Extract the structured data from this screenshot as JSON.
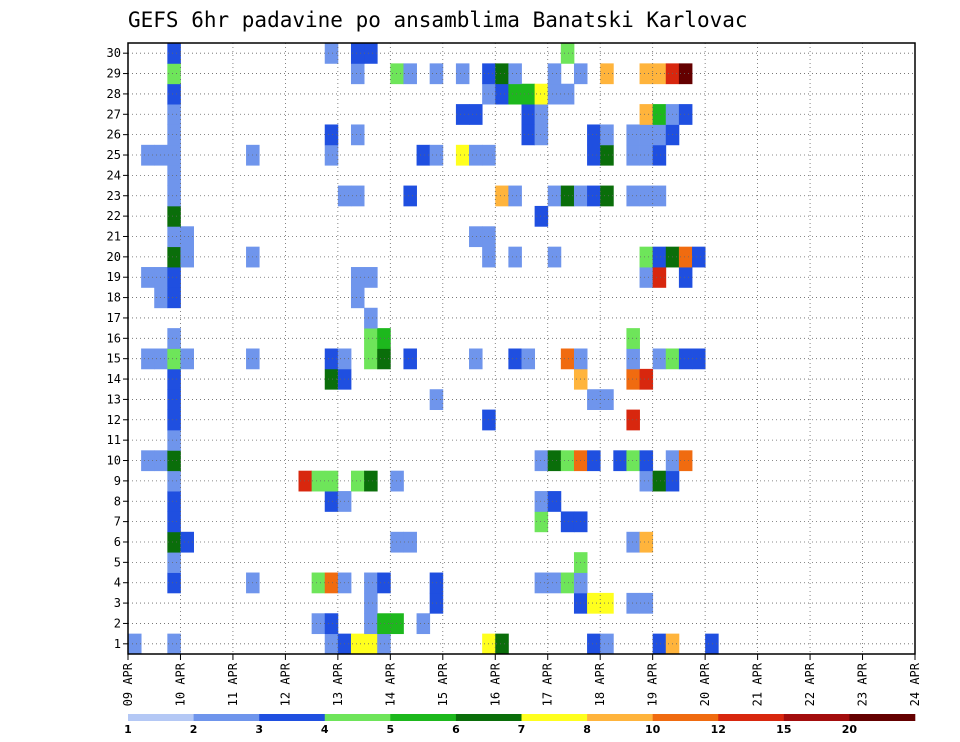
{
  "chart_data": {
    "type": "heatmap",
    "title": "GEFS 6hr padavine po ansamblima Banatski Karlovac",
    "x_tick_labels": [
      "09 APR",
      "10 APR",
      "11 APR",
      "12 APR",
      "13 APR",
      "14 APR",
      "15 APR",
      "16 APR",
      "17 APR",
      "18 APR",
      "19 APR",
      "20 APR",
      "21 APR",
      "22 APR",
      "23 APR",
      "24 APR"
    ],
    "y_tick_labels": [
      "1",
      "2",
      "3",
      "4",
      "5",
      "6",
      "7",
      "8",
      "9",
      "10",
      "11",
      "12",
      "13",
      "14",
      "15",
      "16",
      "17",
      "18",
      "19",
      "20",
      "21",
      "22",
      "23",
      "24",
      "25",
      "26",
      "27",
      "28",
      "29",
      "30"
    ],
    "xlim": [
      0,
      60
    ],
    "ylim": [
      0.5,
      30.5
    ],
    "grid": true,
    "colorbar": {
      "labels": [
        "1",
        "2",
        "3",
        "4",
        "5",
        "6",
        "7",
        "8",
        "10",
        "12",
        "15",
        "20"
      ],
      "colors": [
        "#b4c8f5",
        "#6f95ec",
        "#1f4fe0",
        "#6ee55a",
        "#1db81d",
        "#0a6e0a",
        "#ffff1e",
        "#ffb43c",
        "#f06b10",
        "#d8270e",
        "#a30d0d",
        "#640000"
      ]
    },
    "cells": [
      [
        0,
        1,
        1
      ],
      [
        3,
        1,
        1
      ],
      [
        15,
        1,
        1
      ],
      [
        16,
        1,
        2
      ],
      [
        17,
        1,
        6
      ],
      [
        18,
        1,
        6
      ],
      [
        19,
        1,
        1
      ],
      [
        27,
        1,
        6
      ],
      [
        28,
        1,
        5
      ],
      [
        35,
        1,
        2
      ],
      [
        36,
        1,
        1
      ],
      [
        40,
        1,
        2
      ],
      [
        41,
        1,
        7
      ],
      [
        44,
        1,
        2
      ],
      [
        14,
        2,
        1
      ],
      [
        15,
        2,
        2
      ],
      [
        18,
        2,
        1
      ],
      [
        19,
        2,
        4
      ],
      [
        20,
        2,
        4
      ],
      [
        22,
        2,
        1
      ],
      [
        18,
        3,
        1
      ],
      [
        23,
        3,
        2
      ],
      [
        34,
        3,
        2
      ],
      [
        35,
        3,
        6
      ],
      [
        36,
        3,
        6
      ],
      [
        38,
        3,
        1
      ],
      [
        39,
        3,
        1
      ],
      [
        3,
        4,
        2
      ],
      [
        9,
        4,
        1
      ],
      [
        14,
        4,
        3
      ],
      [
        15,
        4,
        8
      ],
      [
        16,
        4,
        1
      ],
      [
        18,
        4,
        1
      ],
      [
        19,
        4,
        2
      ],
      [
        23,
        4,
        2
      ],
      [
        31,
        4,
        1
      ],
      [
        32,
        4,
        1
      ],
      [
        33,
        4,
        3
      ],
      [
        34,
        4,
        1
      ],
      [
        3,
        5,
        1
      ],
      [
        34,
        5,
        3
      ],
      [
        3,
        6,
        5
      ],
      [
        4,
        6,
        2
      ],
      [
        20,
        6,
        1
      ],
      [
        21,
        6,
        1
      ],
      [
        38,
        6,
        1
      ],
      [
        39,
        6,
        7
      ],
      [
        3,
        7,
        2
      ],
      [
        31,
        7,
        3
      ],
      [
        33,
        7,
        2
      ],
      [
        34,
        7,
        2
      ],
      [
        3,
        8,
        2
      ],
      [
        15,
        8,
        2
      ],
      [
        16,
        8,
        1
      ],
      [
        31,
        8,
        1
      ],
      [
        32,
        8,
        2
      ],
      [
        3,
        9,
        1
      ],
      [
        13,
        9,
        9
      ],
      [
        14,
        9,
        3
      ],
      [
        15,
        9,
        3
      ],
      [
        17,
        9,
        3
      ],
      [
        18,
        9,
        5
      ],
      [
        20,
        9,
        1
      ],
      [
        39,
        9,
        1
      ],
      [
        40,
        9,
        5
      ],
      [
        41,
        9,
        2
      ],
      [
        1,
        10,
        1
      ],
      [
        2,
        10,
        1
      ],
      [
        3,
        10,
        5
      ],
      [
        31,
        10,
        1
      ],
      [
        32,
        10,
        5
      ],
      [
        33,
        10,
        3
      ],
      [
        34,
        10,
        8
      ],
      [
        35,
        10,
        2
      ],
      [
        37,
        10,
        2
      ],
      [
        38,
        10,
        3
      ],
      [
        39,
        10,
        2
      ],
      [
        41,
        10,
        1
      ],
      [
        42,
        10,
        8
      ],
      [
        3,
        11,
        1
      ],
      [
        3,
        12,
        2
      ],
      [
        27,
        12,
        2
      ],
      [
        38,
        12,
        9
      ],
      [
        3,
        13,
        2
      ],
      [
        23,
        13,
        1
      ],
      [
        35,
        13,
        1
      ],
      [
        36,
        13,
        1
      ],
      [
        3,
        14,
        2
      ],
      [
        15,
        14,
        5
      ],
      [
        16,
        14,
        2
      ],
      [
        34,
        14,
        7
      ],
      [
        38,
        14,
        8
      ],
      [
        39,
        14,
        9
      ],
      [
        1,
        15,
        1
      ],
      [
        2,
        15,
        1
      ],
      [
        3,
        15,
        3
      ],
      [
        4,
        15,
        1
      ],
      [
        9,
        15,
        1
      ],
      [
        15,
        15,
        2
      ],
      [
        16,
        15,
        1
      ],
      [
        18,
        15,
        3
      ],
      [
        19,
        15,
        5
      ],
      [
        21,
        15,
        2
      ],
      [
        26,
        15,
        1
      ],
      [
        29,
        15,
        2
      ],
      [
        30,
        15,
        1
      ],
      [
        33,
        15,
        8
      ],
      [
        34,
        15,
        1
      ],
      [
        38,
        15,
        1
      ],
      [
        40,
        15,
        1
      ],
      [
        41,
        15,
        3
      ],
      [
        42,
        15,
        2
      ],
      [
        43,
        15,
        2
      ],
      [
        3,
        16,
        1
      ],
      [
        18,
        16,
        3
      ],
      [
        19,
        16,
        4
      ],
      [
        38,
        16,
        3
      ],
      [
        18,
        17,
        1
      ],
      [
        2,
        18,
        1
      ],
      [
        3,
        18,
        2
      ],
      [
        17,
        18,
        1
      ],
      [
        1,
        19,
        1
      ],
      [
        2,
        19,
        1
      ],
      [
        3,
        19,
        2
      ],
      [
        17,
        19,
        1
      ],
      [
        18,
        19,
        1
      ],
      [
        39,
        19,
        1
      ],
      [
        40,
        19,
        9
      ],
      [
        42,
        19,
        2
      ],
      [
        3,
        20,
        5
      ],
      [
        4,
        20,
        1
      ],
      [
        9,
        20,
        1
      ],
      [
        27,
        20,
        1
      ],
      [
        29,
        20,
        1
      ],
      [
        32,
        20,
        1
      ],
      [
        39,
        20,
        3
      ],
      [
        40,
        20,
        2
      ],
      [
        41,
        20,
        5
      ],
      [
        42,
        20,
        8
      ],
      [
        43,
        20,
        2
      ],
      [
        3,
        21,
        1
      ],
      [
        4,
        21,
        1
      ],
      [
        26,
        21,
        1
      ],
      [
        27,
        21,
        1
      ],
      [
        3,
        22,
        5
      ],
      [
        31,
        22,
        2
      ],
      [
        3,
        23,
        1
      ],
      [
        16,
        23,
        1
      ],
      [
        17,
        23,
        1
      ],
      [
        21,
        23,
        2
      ],
      [
        28,
        23,
        7
      ],
      [
        29,
        23,
        1
      ],
      [
        32,
        23,
        1
      ],
      [
        33,
        23,
        5
      ],
      [
        34,
        23,
        1
      ],
      [
        35,
        23,
        2
      ],
      [
        36,
        23,
        5
      ],
      [
        38,
        23,
        1
      ],
      [
        39,
        23,
        1
      ],
      [
        40,
        23,
        1
      ],
      [
        3,
        24,
        1
      ],
      [
        1,
        25,
        1
      ],
      [
        2,
        25,
        1
      ],
      [
        3,
        25,
        1
      ],
      [
        9,
        25,
        1
      ],
      [
        15,
        25,
        1
      ],
      [
        22,
        25,
        2
      ],
      [
        23,
        25,
        1
      ],
      [
        25,
        25,
        6
      ],
      [
        26,
        25,
        1
      ],
      [
        27,
        25,
        1
      ],
      [
        35,
        25,
        2
      ],
      [
        36,
        25,
        5
      ],
      [
        38,
        25,
        1
      ],
      [
        39,
        25,
        1
      ],
      [
        40,
        25,
        2
      ],
      [
        3,
        26,
        1
      ],
      [
        15,
        26,
        2
      ],
      [
        17,
        26,
        1
      ],
      [
        30,
        26,
        2
      ],
      [
        31,
        26,
        1
      ],
      [
        35,
        26,
        2
      ],
      [
        36,
        26,
        1
      ],
      [
        38,
        26,
        1
      ],
      [
        39,
        26,
        1
      ],
      [
        40,
        26,
        1
      ],
      [
        41,
        26,
        2
      ],
      [
        3,
        27,
        1
      ],
      [
        25,
        27,
        2
      ],
      [
        26,
        27,
        2
      ],
      [
        30,
        27,
        2
      ],
      [
        31,
        27,
        1
      ],
      [
        39,
        27,
        7
      ],
      [
        40,
        27,
        4
      ],
      [
        41,
        27,
        1
      ],
      [
        42,
        27,
        2
      ],
      [
        3,
        28,
        2
      ],
      [
        27,
        28,
        1
      ],
      [
        28,
        28,
        2
      ],
      [
        29,
        28,
        4
      ],
      [
        30,
        28,
        4
      ],
      [
        31,
        28,
        6
      ],
      [
        32,
        28,
        1
      ],
      [
        33,
        28,
        1
      ],
      [
        3,
        29,
        3
      ],
      [
        17,
        29,
        1
      ],
      [
        20,
        29,
        3
      ],
      [
        21,
        29,
        1
      ],
      [
        23,
        29,
        1
      ],
      [
        25,
        29,
        1
      ],
      [
        27,
        29,
        2
      ],
      [
        28,
        29,
        5
      ],
      [
        29,
        29,
        1
      ],
      [
        32,
        29,
        1
      ],
      [
        34,
        29,
        1
      ],
      [
        36,
        29,
        7
      ],
      [
        39,
        29,
        7
      ],
      [
        40,
        29,
        7
      ],
      [
        41,
        29,
        9
      ],
      [
        42,
        29,
        11
      ],
      [
        3,
        30,
        2
      ],
      [
        15,
        30,
        1
      ],
      [
        17,
        30,
        2
      ],
      [
        18,
        30,
        2
      ],
      [
        33,
        30,
        3
      ]
    ]
  }
}
